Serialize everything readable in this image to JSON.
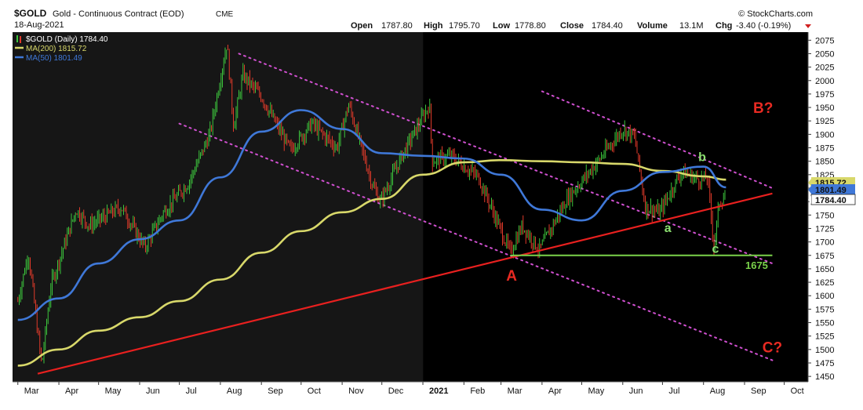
{
  "header": {
    "symbol": "$GOLD",
    "name": "Gold - Continuous Contract (EOD)",
    "exchange": "CME",
    "date": "18-Aug-2021",
    "credit": "© StockCharts.com",
    "open_label": "Open",
    "open": "1787.80",
    "high_label": "High",
    "high": "1795.70",
    "low_label": "Low",
    "low": "1778.80",
    "close_label": "Close",
    "close": "1784.40",
    "volume_label": "Volume",
    "volume": "13.1M",
    "chg_label": "Chg",
    "chg": "-3.40 (-0.19%)"
  },
  "legend": [
    {
      "text": "$GOLD (Daily) 1784.40",
      "color": "#ffffff"
    },
    {
      "text": "MA(200) 1815.72",
      "color": "#d8d86a"
    },
    {
      "text": "MA(50) 1801.49",
      "color": "#3f78d8"
    }
  ],
  "colors": {
    "background_prev": "#161616",
    "background_curr": "#000000",
    "up": "#3cc43c",
    "down": "#e03a2a",
    "ma200": "#d8d86a",
    "ma50": "#3f78d8",
    "trendline": "#e8201f",
    "channel": "#d050d0",
    "support": "#7ad24a",
    "label_red": "#e82a22",
    "label_green": "#8ce070"
  },
  "chart_data": {
    "type": "line",
    "ylim": [
      1440,
      2090
    ],
    "y_ticks": [
      1450,
      1475,
      1500,
      1525,
      1550,
      1575,
      1600,
      1625,
      1650,
      1675,
      1700,
      1725,
      1750,
      1775,
      1800,
      1825,
      1850,
      1875,
      1900,
      1925,
      1950,
      1975,
      2000,
      2025,
      2050,
      2075
    ],
    "x_ticks": [
      "Mar",
      "Apr",
      "May",
      "Jun",
      "Jul",
      "Aug",
      "Sep",
      "Oct",
      "Nov",
      "Dec",
      "2021",
      "Feb",
      "Mar",
      "Apr",
      "May",
      "Jun",
      "Jul",
      "Aug",
      "Sep",
      "Oct"
    ],
    "series": [
      {
        "name": "$GOLD (Daily)",
        "values": [
          [
            "2020-03-01",
            1590
          ],
          [
            "2020-03-09",
            1680
          ],
          [
            "2020-03-19",
            1470
          ],
          [
            "2020-03-26",
            1620
          ],
          [
            "2020-04-14",
            1760
          ],
          [
            "2020-04-24",
            1730
          ],
          [
            "2020-05-18",
            1765
          ],
          [
            "2020-06-05",
            1690
          ],
          [
            "2020-06-19",
            1755
          ],
          [
            "2020-07-08",
            1810
          ],
          [
            "2020-07-24",
            1900
          ],
          [
            "2020-08-06",
            2070
          ],
          [
            "2020-08-11",
            1915
          ],
          [
            "2020-08-18",
            2010
          ],
          [
            "2020-09-01",
            1970
          ],
          [
            "2020-09-23",
            1870
          ],
          [
            "2020-10-09",
            1920
          ],
          [
            "2020-10-28",
            1875
          ],
          [
            "2020-11-06",
            1955
          ],
          [
            "2020-11-24",
            1805
          ],
          [
            "2020-11-30",
            1775
          ],
          [
            "2020-12-16",
            1860
          ],
          [
            "2021-01-06",
            1955
          ],
          [
            "2021-01-08",
            1850
          ],
          [
            "2021-01-22",
            1860
          ],
          [
            "2021-02-12",
            1820
          ],
          [
            "2021-03-08",
            1680
          ],
          [
            "2021-03-17",
            1730
          ],
          [
            "2021-03-30",
            1685
          ],
          [
            "2021-04-20",
            1780
          ],
          [
            "2021-05-10",
            1840
          ],
          [
            "2021-06-01",
            1910
          ],
          [
            "2021-06-10",
            1895
          ],
          [
            "2021-06-18",
            1765
          ],
          [
            "2021-06-29",
            1755
          ],
          [
            "2021-07-15",
            1830
          ],
          [
            "2021-07-30",
            1815
          ],
          [
            "2021-08-04",
            1820
          ],
          [
            "2021-08-09",
            1690
          ],
          [
            "2021-08-13",
            1775
          ],
          [
            "2021-08-18",
            1784.4
          ]
        ]
      },
      {
        "name": "MA(200)",
        "values": [
          [
            "2020-03-01",
            1470
          ],
          [
            "2020-04-01",
            1500
          ],
          [
            "2020-05-01",
            1535
          ],
          [
            "2020-06-01",
            1560
          ],
          [
            "2020-07-01",
            1590
          ],
          [
            "2020-08-01",
            1630
          ],
          [
            "2020-09-01",
            1680
          ],
          [
            "2020-10-01",
            1720
          ],
          [
            "2020-11-01",
            1755
          ],
          [
            "2020-12-01",
            1780
          ],
          [
            "2021-01-01",
            1825
          ],
          [
            "2021-02-01",
            1848
          ],
          [
            "2021-03-01",
            1852
          ],
          [
            "2021-04-01",
            1850
          ],
          [
            "2021-05-01",
            1848
          ],
          [
            "2021-06-01",
            1845
          ],
          [
            "2021-07-01",
            1832
          ],
          [
            "2021-08-01",
            1822
          ],
          [
            "2021-08-18",
            1815.72
          ]
        ]
      },
      {
        "name": "MA(50)",
        "values": [
          [
            "2020-03-01",
            1555
          ],
          [
            "2020-04-01",
            1595
          ],
          [
            "2020-05-01",
            1660
          ],
          [
            "2020-06-01",
            1705
          ],
          [
            "2020-07-01",
            1740
          ],
          [
            "2020-08-01",
            1820
          ],
          [
            "2020-09-01",
            1905
          ],
          [
            "2020-10-01",
            1945
          ],
          [
            "2020-11-01",
            1910
          ],
          [
            "2020-12-01",
            1865
          ],
          [
            "2021-01-01",
            1860
          ],
          [
            "2021-02-01",
            1855
          ],
          [
            "2021-03-01",
            1825
          ],
          [
            "2021-04-01",
            1760
          ],
          [
            "2021-05-01",
            1740
          ],
          [
            "2021-06-01",
            1795
          ],
          [
            "2021-07-01",
            1830
          ],
          [
            "2021-08-01",
            1840
          ],
          [
            "2021-08-18",
            1801.49
          ]
        ]
      }
    ],
    "last_value_tags": [
      {
        "text": "1815.72",
        "value": 1815.72,
        "color": "#d8d86a"
      },
      {
        "text": "1801.49",
        "value": 1801.49,
        "color": "#3f78d8"
      },
      {
        "text": "1784.40",
        "value": 1784.4,
        "color": "#ffffff"
      }
    ],
    "annotations": {
      "trendline": [
        [
          "2020-03-16",
          1455
        ],
        [
          "2021-09-22",
          1790
        ]
      ],
      "support": {
        "value": 1675,
        "from": "2021-03-08",
        "to": "2021-09-22",
        "label": "1675"
      },
      "channels": [
        [
          [
            "2020-08-15",
            2050
          ],
          [
            "2021-09-22",
            1660
          ]
        ],
        [
          [
            "2020-07-01",
            1920
          ],
          [
            "2021-09-22",
            1480
          ]
        ],
        [
          [
            "2021-04-01",
            1980
          ],
          [
            "2021-09-22",
            1800
          ]
        ]
      ],
      "labels": [
        {
          "text": "A",
          "date": "2021-03-09",
          "value": 1628,
          "color": "red"
        },
        {
          "text": "B?",
          "date": "2021-09-15",
          "value": 1940,
          "color": "red"
        },
        {
          "text": "C?",
          "date": "2021-09-22",
          "value": 1495,
          "color": "red"
        },
        {
          "text": "a",
          "date": "2021-07-05",
          "value": 1718,
          "color": "green"
        },
        {
          "text": "b",
          "date": "2021-07-31",
          "value": 1850,
          "color": "green"
        },
        {
          "text": "c",
          "date": "2021-08-10",
          "value": 1680,
          "color": "green"
        }
      ]
    }
  }
}
